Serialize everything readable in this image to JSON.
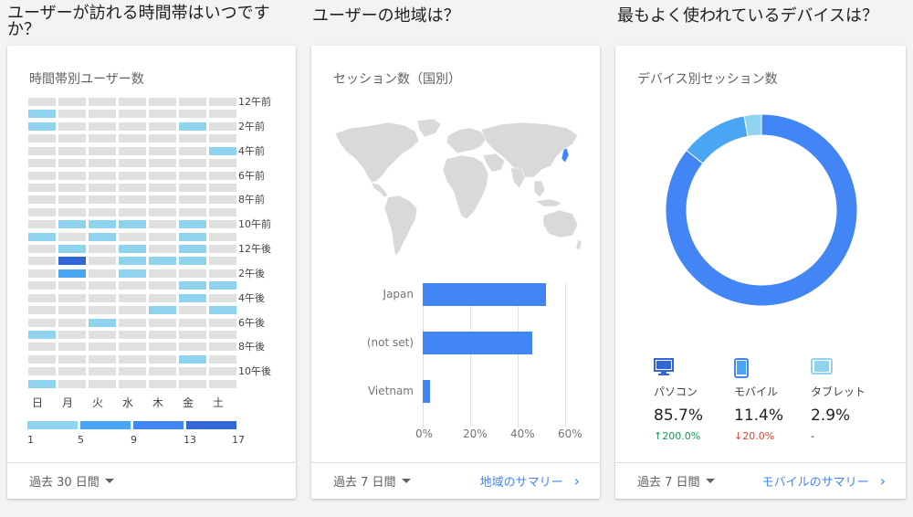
{
  "sections": {
    "time": "ユーザーが訪れる時間帯はいつですか？",
    "region": "ユーザーの地域は？",
    "device": "最もよく使われているデバイスは？"
  },
  "heatmap": {
    "title": "時間帯別ユーザー数",
    "days": [
      "日",
      "月",
      "火",
      "水",
      "木",
      "金",
      "土"
    ],
    "hour_labels": [
      "12午前",
      "2午前",
      "4午前",
      "6午前",
      "8午前",
      "10午前",
      "12午後",
      "2午後",
      "4午後",
      "6午後",
      "8午後",
      "10午後"
    ],
    "cells": [
      [
        0,
        0,
        0,
        0,
        0,
        0,
        0
      ],
      [
        1,
        0,
        0,
        0,
        0,
        0,
        0
      ],
      [
        1,
        0,
        0,
        0,
        0,
        1,
        0
      ],
      [
        0,
        0,
        0,
        0,
        0,
        0,
        0
      ],
      [
        0,
        0,
        0,
        0,
        0,
        0,
        1
      ],
      [
        0,
        0,
        0,
        0,
        0,
        0,
        0
      ],
      [
        0,
        0,
        0,
        0,
        0,
        0,
        0
      ],
      [
        0,
        0,
        0,
        0,
        0,
        0,
        0
      ],
      [
        0,
        0,
        0,
        0,
        0,
        0,
        0
      ],
      [
        0,
        0,
        0,
        0,
        0,
        0,
        0
      ],
      [
        0,
        1,
        1,
        1,
        0,
        1,
        0
      ],
      [
        1,
        0,
        1,
        0,
        0,
        1,
        0
      ],
      [
        0,
        1,
        0,
        1,
        0,
        1,
        0
      ],
      [
        0,
        4,
        0,
        1,
        1,
        1,
        0
      ],
      [
        0,
        2,
        0,
        1,
        0,
        0,
        0
      ],
      [
        0,
        0,
        0,
        0,
        0,
        1,
        1
      ],
      [
        0,
        0,
        0,
        0,
        0,
        1,
        0
      ],
      [
        0,
        0,
        0,
        0,
        1,
        0,
        1
      ],
      [
        0,
        0,
        1,
        0,
        0,
        0,
        0
      ],
      [
        1,
        0,
        0,
        0,
        0,
        0,
        0
      ],
      [
        0,
        0,
        0,
        0,
        0,
        0,
        0
      ],
      [
        0,
        0,
        0,
        0,
        0,
        1,
        0
      ],
      [
        0,
        0,
        0,
        0,
        0,
        0,
        0
      ],
      [
        1,
        0,
        0,
        0,
        0,
        0,
        0
      ]
    ],
    "colors": [
      "#e0e0e0",
      "#90d3ee",
      "#4aa5f5",
      "#4285f4",
      "#3367d6"
    ],
    "legend_ticks": [
      "1",
      "5",
      "9",
      "13",
      "17"
    ],
    "footer_range": "過去 30 日間"
  },
  "region": {
    "title": "セッション数（国別）",
    "chart_data": {
      "type": "bar",
      "orientation": "horizontal",
      "categories": [
        "Japan",
        "(not set)",
        "Vietnam"
      ],
      "values": [
        52,
        46,
        3
      ],
      "x_ticks": [
        "0%",
        "20%",
        "40%",
        "60%"
      ],
      "xlim": [
        0,
        60
      ],
      "bar_color": "#4285f4"
    },
    "footer_range": "過去 7 日間",
    "summary_link": "地域のサマリー"
  },
  "device": {
    "title": "デバイス別セッション数",
    "chart_data": {
      "type": "pie",
      "style": "donut",
      "labels": [
        "パソコン",
        "モバイル",
        "タブレット"
      ],
      "values": [
        85.7,
        11.4,
        2.9
      ],
      "colors": [
        "#4285f4",
        "#4aa5f5",
        "#90d3ee"
      ]
    },
    "items": [
      {
        "name": "パソコン",
        "pct": "85.7%",
        "change": "200.0%",
        "arrow": "↑",
        "dir": "up",
        "icon": "desktop-icon"
      },
      {
        "name": "モバイル",
        "pct": "11.4%",
        "change": "20.0%",
        "arrow": "↓",
        "dir": "down",
        "icon": "mobile-icon"
      },
      {
        "name": "タブレット",
        "pct": "2.9%",
        "change": "-",
        "arrow": "",
        "dir": "none",
        "icon": "tablet-icon"
      }
    ],
    "footer_range": "過去 7 日間",
    "summary_link": "モバイルのサマリー"
  }
}
